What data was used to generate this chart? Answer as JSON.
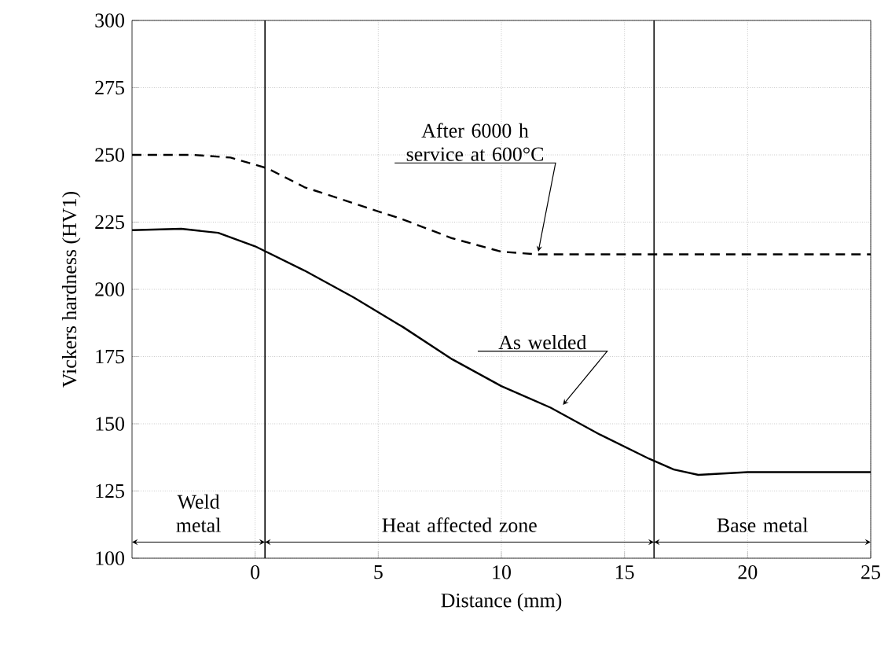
{
  "chart_data": {
    "type": "line",
    "xlabel": "Distance (mm)",
    "ylabel": "Vickers hardness (HV1)",
    "xlim": [
      -5,
      25
    ],
    "ylim": [
      100,
      300
    ],
    "xticks": [
      0,
      5,
      10,
      15,
      20,
      25
    ],
    "yticks": [
      100,
      125,
      150,
      175,
      200,
      225,
      250,
      275,
      300
    ],
    "grid": true,
    "marker": "none",
    "series": [
      {
        "color": "#000000",
        "line_style": "dashed",
        "x": [
          -5,
          -2.5,
          -1,
          0.5,
          2,
          4,
          6,
          8,
          10,
          11.5,
          25
        ],
        "values": [
          250,
          250,
          249,
          245,
          238,
          232,
          226,
          219,
          214,
          213,
          213
        ]
      },
      {
        "color": "#000000",
        "line_style": "solid",
        "x": [
          -5,
          -3,
          -1.5,
          0,
          2,
          4,
          6,
          8,
          10,
          12,
          14,
          16,
          17,
          18,
          19,
          20,
          25
        ],
        "values": [
          222,
          222.5,
          221,
          216,
          207,
          197,
          186,
          174,
          164,
          156,
          146,
          137,
          133,
          131,
          131.5,
          132,
          132
        ]
      }
    ],
    "annotations": [
      {
        "text": "After 6000 h service at 600°C",
        "x": 11.5,
        "y": 214
      },
      {
        "text": "As welded",
        "x": 12.5,
        "y": 157
      },
      "Weld metal",
      "Heat affected zone",
      "Base metal"
    ],
    "ref_lines": [
      {
        "axis": "x",
        "value": 0.4
      },
      {
        "axis": "x",
        "value": 16.2
      }
    ]
  }
}
